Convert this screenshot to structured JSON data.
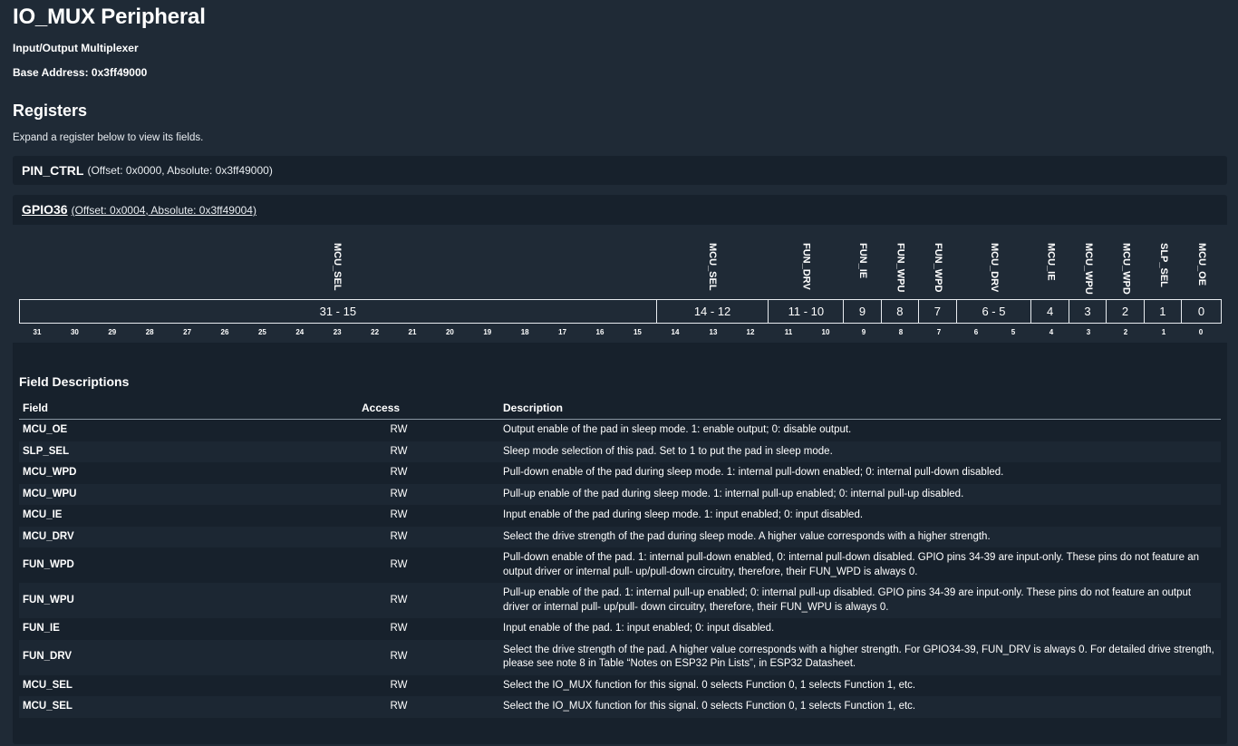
{
  "page": {
    "title": "IO_MUX Peripheral",
    "subtitle": "Input/Output Multiplexer",
    "base_address": "Base Address: 0x3ff49000",
    "registers_heading": "Registers",
    "hint": "Expand a register below to view its fields."
  },
  "registers": [
    {
      "name": "PIN_CTRL",
      "meta": "(Offset: 0x0000, Absolute: 0x3ff49000)"
    },
    {
      "name": "GPIO36",
      "meta": "(Offset: 0x0004, Absolute: 0x3ff49004)"
    }
  ],
  "bitfield": {
    "fields": [
      {
        "name": "MCU_SEL",
        "range": "31 - 15",
        "hi": 31,
        "lo": 15
      },
      {
        "name": "MCU_SEL",
        "range": "14 - 12",
        "hi": 14,
        "lo": 12
      },
      {
        "name": "FUN_DRV",
        "range": "11 - 10",
        "hi": 11,
        "lo": 10
      },
      {
        "name": "FUN_IE",
        "range": "9",
        "hi": 9,
        "lo": 9
      },
      {
        "name": "FUN_WPU",
        "range": "8",
        "hi": 8,
        "lo": 8
      },
      {
        "name": "FUN_WPD",
        "range": "7",
        "hi": 7,
        "lo": 7
      },
      {
        "name": "MCU_DRV",
        "range": "6 - 5",
        "hi": 6,
        "lo": 5
      },
      {
        "name": "MCU_IE",
        "range": "4",
        "hi": 4,
        "lo": 4
      },
      {
        "name": "MCU_WPU",
        "range": "3",
        "hi": 3,
        "lo": 3
      },
      {
        "name": "MCU_WPD",
        "range": "2",
        "hi": 2,
        "lo": 2
      },
      {
        "name": "SLP_SEL",
        "range": "1",
        "hi": 1,
        "lo": 1
      },
      {
        "name": "MCU_OE",
        "range": "0",
        "hi": 0,
        "lo": 0
      }
    ],
    "bit_numbers": [
      "31",
      "30",
      "29",
      "28",
      "27",
      "26",
      "25",
      "24",
      "23",
      "22",
      "21",
      "20",
      "19",
      "18",
      "17",
      "16",
      "15",
      "14",
      "13",
      "12",
      "11",
      "10",
      "9",
      "8",
      "7",
      "6",
      "5",
      "4",
      "3",
      "2",
      "1",
      "0"
    ]
  },
  "field_descriptions": {
    "heading": "Field Descriptions",
    "columns": {
      "field": "Field",
      "access": "Access",
      "description": "Description"
    },
    "rows": [
      {
        "field": "MCU_OE",
        "access": "RW",
        "description": "Output enable of the pad in sleep mode. 1: enable output; 0: disable output."
      },
      {
        "field": "SLP_SEL",
        "access": "RW",
        "description": "Sleep mode selection of this pad. Set to 1 to put the pad in sleep mode."
      },
      {
        "field": "MCU_WPD",
        "access": "RW",
        "description": "Pull-down enable of the pad during sleep mode. 1: internal pull-down enabled; 0: internal pull-down disabled."
      },
      {
        "field": "MCU_WPU",
        "access": "RW",
        "description": "Pull-up enable of the pad during sleep mode. 1: internal pull-up enabled; 0: internal pull-up disabled."
      },
      {
        "field": "MCU_IE",
        "access": "RW",
        "description": "Input enable of the pad during sleep mode. 1: input enabled; 0: input disabled."
      },
      {
        "field": "MCU_DRV",
        "access": "RW",
        "description": "Select the drive strength of the pad during sleep mode. A higher value corresponds with a higher strength."
      },
      {
        "field": "FUN_WPD",
        "access": "RW",
        "description": "Pull-down enable of the pad. 1: internal pull-down enabled, 0: internal pull-down disabled. GPIO pins 34-39 are input-only. These pins do not feature an output driver or internal pull- up/pull-down circuitry, therefore, their FUN_WPD is always 0."
      },
      {
        "field": "FUN_WPU",
        "access": "RW",
        "description": "Pull-up enable of the pad. 1: internal pull-up enabled; 0: internal pull-up disabled. GPIO pins 34-39 are input-only. These pins do not feature an output driver or internal pull- up/pull- down circuitry, therefore, their FUN_WPU is always 0."
      },
      {
        "field": "FUN_IE",
        "access": "RW",
        "description": "Input enable of the pad. 1: input enabled; 0: input disabled."
      },
      {
        "field": "FUN_DRV",
        "access": "RW",
        "description": "Select the drive strength of the pad. A higher value corresponds with a higher strength. For GPIO34-39, FUN_DRV is always 0. For detailed drive strength, please see note 8 in Table “Notes on ESP32 Pin Lists”, in ESP32 Datasheet."
      },
      {
        "field": "MCU_SEL",
        "access": "RW",
        "description": "Select the IO_MUX function for this signal. 0 selects Function 0, 1 selects Function 1, etc."
      },
      {
        "field": "MCU_SEL",
        "access": "RW",
        "description": "Select the IO_MUX function for this signal. 0 selects Function 0, 1 selects Function 1, etc."
      }
    ]
  }
}
